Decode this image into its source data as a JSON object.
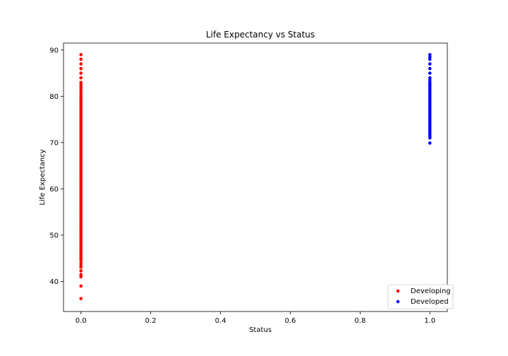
{
  "chart_data": {
    "type": "scatter",
    "title": "Life Expectancy vs Status",
    "xlabel": "Status",
    "ylabel": "Life Expectancy",
    "xlim": [
      -0.05,
      1.05
    ],
    "ylim": [
      33.5,
      91.5
    ],
    "xticks": [
      0.0,
      0.2,
      0.4,
      0.6,
      0.8,
      1.0
    ],
    "xtick_labels": [
      "0.0",
      "0.2",
      "0.4",
      "0.6",
      "0.8",
      "1.0"
    ],
    "yticks": [
      40,
      50,
      60,
      70,
      80,
      90
    ],
    "ytick_labels": [
      "40",
      "50",
      "60",
      "70",
      "80",
      "90"
    ],
    "grid": false,
    "legend_position": "bottom-right",
    "series": [
      {
        "name": "Developing",
        "color": "#ff0000",
        "x": 0,
        "y": [
          36.3,
          39.0,
          41.0,
          41.5,
          42.3,
          43.1,
          43.5,
          44.0,
          44.6,
          45.0,
          45.3,
          45.7,
          46.0,
          46.4,
          46.8,
          47.2,
          47.6,
          48.0,
          48.4,
          48.8,
          49.2,
          49.6,
          50.0,
          50.4,
          50.8,
          51.2,
          51.6,
          52.0,
          52.4,
          52.8,
          53.2,
          53.6,
          54.0,
          54.4,
          54.8,
          55.2,
          55.6,
          56.0,
          56.4,
          56.8,
          57.2,
          57.6,
          58.0,
          58.4,
          58.8,
          59.2,
          59.6,
          60.0,
          60.4,
          60.8,
          61.2,
          61.6,
          62.0,
          62.4,
          62.8,
          63.2,
          63.6,
          64.0,
          64.4,
          64.8,
          65.2,
          65.6,
          66.0,
          66.4,
          66.8,
          67.2,
          67.6,
          68.0,
          68.4,
          68.8,
          69.2,
          69.6,
          70.0,
          70.4,
          70.8,
          71.2,
          71.6,
          72.0,
          72.4,
          72.8,
          73.2,
          73.6,
          74.0,
          74.4,
          74.8,
          75.2,
          75.6,
          76.0,
          76.4,
          76.8,
          77.2,
          77.6,
          78.0,
          78.4,
          78.8,
          79.2,
          79.6,
          80.0,
          80.5,
          81.0,
          81.5,
          82.0,
          82.5,
          83.0,
          84.0,
          85.0,
          86.0,
          87.0,
          88.0,
          89.0
        ]
      },
      {
        "name": "Developed",
        "color": "#0000ff",
        "x": 1,
        "y": [
          69.9,
          71.0,
          71.4,
          71.8,
          72.2,
          72.6,
          73.0,
          73.4,
          73.8,
          74.2,
          74.6,
          75.0,
          75.4,
          75.8,
          76.2,
          76.6,
          77.0,
          77.4,
          77.8,
          78.2,
          78.6,
          79.0,
          79.4,
          79.8,
          80.2,
          80.6,
          81.0,
          81.4,
          81.8,
          82.2,
          82.6,
          83.0,
          83.5,
          84.0,
          85.0,
          86.0,
          87.0,
          88.0,
          88.5,
          89.0
        ]
      }
    ]
  }
}
